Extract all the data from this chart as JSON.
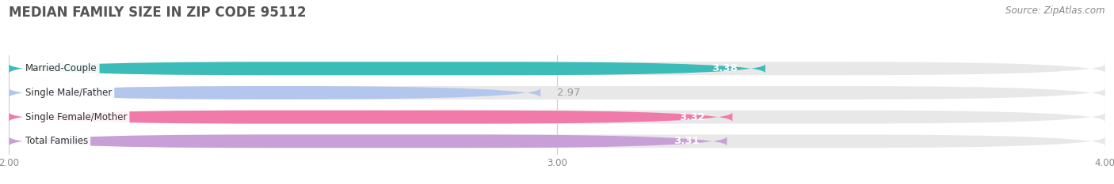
{
  "title": "MEDIAN FAMILY SIZE IN ZIP CODE 95112",
  "source": "Source: ZipAtlas.com",
  "categories": [
    "Married-Couple",
    "Single Male/Father",
    "Single Female/Mother",
    "Total Families"
  ],
  "values": [
    3.38,
    2.97,
    3.32,
    3.31
  ],
  "bar_colors": [
    "#3bbcb8",
    "#b3c6ee",
    "#f07baa",
    "#c8a0d8"
  ],
  "bar_bg_color": "#e8e8e8",
  "xlim": [
    2.0,
    4.0
  ],
  "xticks": [
    2.0,
    3.0,
    4.0
  ],
  "xtick_labels": [
    "2.00",
    "3.00",
    "4.00"
  ],
  "label_outside_color": "#999999",
  "label_fontsize": 9.5,
  "category_fontsize": 8.5,
  "title_fontsize": 12,
  "source_fontsize": 8.5,
  "bar_height": 0.55,
  "bar_gap": 1.0,
  "background_color": "#ffffff",
  "grid_color": "#cccccc",
  "inside_label_threshold": 3.1
}
